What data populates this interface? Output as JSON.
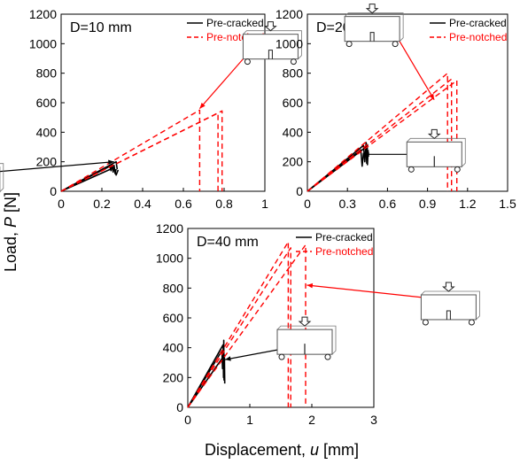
{
  "figure": {
    "ylabel_prefix": "Load, ",
    "ylabel_var": "P",
    "ylabel_unit": " [N]",
    "xlabel_prefix": "Displacement, ",
    "xlabel_var": "u",
    "xlabel_unit": " [mm]"
  },
  "colors": {
    "pre_cracked": "#000000",
    "pre_notched": "#ff0000"
  },
  "chart_data": [
    {
      "type": "line",
      "title": "D=10 mm",
      "xlim": [
        0,
        1
      ],
      "ylim": [
        0,
        1200
      ],
      "xticks": [
        0,
        0.2,
        0.4,
        0.6,
        0.8,
        1
      ],
      "xtick_labels": [
        "0",
        "0.2",
        "0.4",
        "0.6",
        "0.8",
        "1"
      ],
      "yticks": [
        0,
        200,
        400,
        600,
        800,
        1000,
        1200
      ],
      "ytick_labels": [
        "0",
        "200",
        "400",
        "600",
        "800",
        "1000",
        "1200"
      ],
      "legend": "top-right",
      "series": [
        {
          "name": "Pre-cracked",
          "style": "solid",
          "color": "#000000",
          "x": [
            0,
            0.24,
            0.245,
            0.25,
            0.255,
            0.26,
            0.265,
            0.27
          ],
          "y": [
            0,
            170,
            140,
            185,
            130,
            175,
            120,
            150
          ]
        },
        {
          "style": "solid",
          "color": "#000000",
          "x": [
            0,
            0.26,
            0.27,
            0.28
          ],
          "y": [
            0,
            160,
            110,
            145
          ]
        },
        {
          "style": "solid",
          "color": "#000000",
          "x": [
            0,
            0.27,
            0.275
          ],
          "y": [
            0,
            200,
            150
          ]
        },
        {
          "name": "Pre-notched",
          "style": "dashed",
          "color": "#ff0000",
          "x": [
            0,
            0.68,
            0.68
          ],
          "y": [
            0,
            550,
            0
          ]
        },
        {
          "style": "dashed",
          "color": "#ff0000",
          "x": [
            0,
            0.77,
            0.77
          ],
          "y": [
            0,
            530,
            0
          ]
        },
        {
          "style": "dashed",
          "color": "#ff0000",
          "x": [
            0,
            0.79,
            0.79
          ],
          "y": [
            0,
            545,
            0
          ]
        }
      ],
      "annotations": [
        {
          "kind": "beam",
          "variant": "cracked",
          "arrow_to": [
            0.26,
            200
          ]
        },
        {
          "kind": "beam",
          "variant": "notched",
          "arrow_to": [
            0.68,
            560
          ]
        }
      ]
    },
    {
      "type": "line",
      "title": "D=20 mm",
      "xlim": [
        0,
        1.5
      ],
      "ylim": [
        0,
        1200
      ],
      "xticks": [
        0,
        0.3,
        0.6,
        0.9,
        1.2,
        1.5
      ],
      "xtick_labels": [
        "0",
        "0.3",
        "0.6",
        "0.9",
        "1.2",
        "1.5"
      ],
      "yticks": [
        0,
        200,
        400,
        600,
        800,
        1000,
        1200
      ],
      "ytick_labels": [
        "0",
        "200",
        "400",
        "600",
        "800",
        "1000",
        "1200"
      ],
      "legend": "top-right",
      "series": [
        {
          "name": "Pre-cracked",
          "style": "solid",
          "color": "#000000",
          "x": [
            0,
            0.42,
            0.43,
            0.44,
            0.45,
            0.455
          ],
          "y": [
            0,
            310,
            200,
            330,
            180,
            280
          ]
        },
        {
          "style": "solid",
          "color": "#000000",
          "x": [
            0,
            0.4,
            0.41,
            0.42
          ],
          "y": [
            0,
            280,
            170,
            260
          ]
        },
        {
          "style": "solid",
          "color": "#000000",
          "x": [
            0,
            0.44,
            0.445,
            0.45
          ],
          "y": [
            0,
            300,
            190,
            320
          ]
        },
        {
          "name": "Pre-notched",
          "style": "dashed",
          "color": "#ff0000",
          "x": [
            0,
            1.05,
            1.05
          ],
          "y": [
            0,
            800,
            0
          ]
        },
        {
          "style": "dashed",
          "color": "#ff0000",
          "x": [
            0,
            1.08,
            1.08
          ],
          "y": [
            0,
            760,
            0
          ]
        },
        {
          "style": "dashed",
          "color": "#ff0000",
          "x": [
            0,
            1.12,
            1.12
          ],
          "y": [
            0,
            750,
            0
          ]
        }
      ],
      "annotations": [
        {
          "kind": "beam",
          "variant": "notched",
          "arrow_to": [
            0.95,
            620
          ]
        },
        {
          "kind": "beam",
          "variant": "cracked",
          "arrow_to": [
            0.42,
            250
          ]
        }
      ]
    },
    {
      "type": "line",
      "title": "D=40 mm",
      "xlim": [
        0,
        3
      ],
      "ylim": [
        0,
        1200
      ],
      "xticks": [
        0,
        1,
        2,
        3
      ],
      "xtick_labels": [
        "0",
        "1",
        "2",
        "3"
      ],
      "yticks": [
        0,
        200,
        400,
        600,
        800,
        1000,
        1200
      ],
      "ytick_labels": [
        "0",
        "200",
        "400",
        "600",
        "800",
        "1000",
        "1200"
      ],
      "legend": "top-right",
      "series": [
        {
          "name": "Pre-cracked",
          "style": "solid",
          "color": "#000000",
          "x": [
            0,
            0.57,
            0.575,
            0.58,
            0.585
          ],
          "y": [
            0,
            420,
            200,
            450,
            180
          ]
        },
        {
          "style": "solid",
          "color": "#000000",
          "x": [
            0,
            0.55,
            0.56,
            0.565
          ],
          "y": [
            0,
            380,
            260,
            360
          ]
        },
        {
          "style": "solid",
          "color": "#000000",
          "x": [
            0,
            0.59,
            0.595
          ],
          "y": [
            0,
            350,
            160
          ]
        },
        {
          "name": "Pre-notched",
          "style": "dashed",
          "color": "#ff0000",
          "x": [
            0,
            1.62,
            1.62
          ],
          "y": [
            0,
            1110,
            0
          ]
        },
        {
          "style": "dashed",
          "color": "#ff0000",
          "x": [
            0,
            1.66,
            1.66
          ],
          "y": [
            0,
            1070,
            0
          ]
        },
        {
          "style": "dashed",
          "color": "#ff0000",
          "x": [
            0,
            1.9,
            1.9
          ],
          "y": [
            0,
            1090,
            0
          ]
        }
      ],
      "annotations": [
        {
          "kind": "beam",
          "variant": "notched",
          "arrow_to": [
            1.92,
            820
          ]
        },
        {
          "kind": "beam",
          "variant": "cracked",
          "arrow_to": [
            0.6,
            320
          ]
        }
      ]
    }
  ]
}
